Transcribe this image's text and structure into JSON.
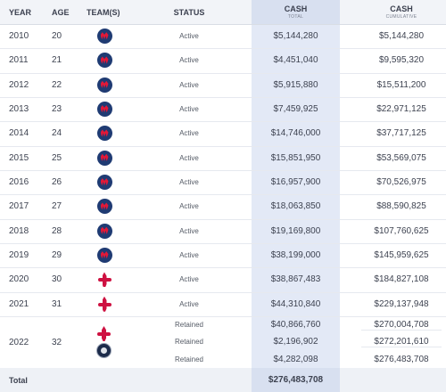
{
  "headers": {
    "year": "YEAR",
    "age": "AGE",
    "teams": "TEAM(S)",
    "status": "STATUS",
    "cash_total": "CASH",
    "cash_total_sub": "TOTAL",
    "cash_cum": "CASH",
    "cash_cum_sub": "CUMULATIVE"
  },
  "rows": [
    {
      "year": "2010",
      "age": "20",
      "team": "wizards-logo-icon",
      "status": "Active",
      "cash": "$5,144,280",
      "cumulative": "$5,144,280"
    },
    {
      "year": "2011",
      "age": "21",
      "team": "wizards-logo-icon",
      "status": "Active",
      "cash": "$4,451,040",
      "cumulative": "$9,595,320"
    },
    {
      "year": "2012",
      "age": "22",
      "team": "wizards-logo-icon",
      "status": "Active",
      "cash": "$5,915,880",
      "cumulative": "$15,511,200"
    },
    {
      "year": "2013",
      "age": "23",
      "team": "wizards-logo-icon",
      "status": "Active",
      "cash": "$7,459,925",
      "cumulative": "$22,971,125"
    },
    {
      "year": "2014",
      "age": "24",
      "team": "wizards-logo-icon",
      "status": "Active",
      "cash": "$14,746,000",
      "cumulative": "$37,717,125"
    },
    {
      "year": "2015",
      "age": "25",
      "team": "wizards-logo-icon",
      "status": "Active",
      "cash": "$15,851,950",
      "cumulative": "$53,569,075"
    },
    {
      "year": "2016",
      "age": "26",
      "team": "wizards-logo-icon",
      "status": "Active",
      "cash": "$16,957,900",
      "cumulative": "$70,526,975"
    },
    {
      "year": "2017",
      "age": "27",
      "team": "wizards-logo-icon",
      "status": "Active",
      "cash": "$18,063,850",
      "cumulative": "$88,590,825"
    },
    {
      "year": "2018",
      "age": "28",
      "team": "wizards-logo-icon",
      "status": "Active",
      "cash": "$19,169,800",
      "cumulative": "$107,760,625"
    },
    {
      "year": "2019",
      "age": "29",
      "team": "wizards-logo-icon",
      "status": "Active",
      "cash": "$38,199,000",
      "cumulative": "$145,959,625"
    },
    {
      "year": "2020",
      "age": "30",
      "team": "rockets-logo-icon",
      "status": "Active",
      "cash": "$38,867,483",
      "cumulative": "$184,827,108"
    },
    {
      "year": "2021",
      "age": "31",
      "team": "rockets-logo-icon",
      "status": "Active",
      "cash": "$44,310,840",
      "cumulative": "$229,137,948"
    }
  ],
  "row_2022": {
    "year": "2022",
    "age": "32",
    "teams": [
      "rockets-logo-icon",
      "nets-logo-icon"
    ],
    "statuses": [
      "Retained",
      "Retained",
      "Retained"
    ],
    "cash": [
      "$40,866,760",
      "$2,196,902",
      "$4,282,098"
    ],
    "cumulative": [
      "$270,004,708",
      "$272,201,610",
      "$276,483,708"
    ]
  },
  "total": {
    "label": "Total",
    "cash": "$276,483,708"
  },
  "colors": {
    "highlight_column": "#e3e9f6",
    "wizards_navy": "#1f3b73",
    "rockets_red": "#ce1141"
  }
}
